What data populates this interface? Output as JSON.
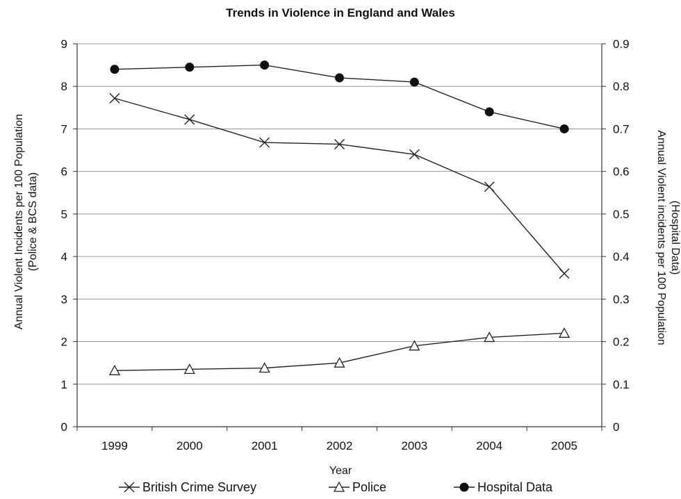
{
  "chart_data": {
    "type": "line",
    "title": "Trends in Violence in England and Wales",
    "xlabel": "Year",
    "ylabel_left_line1": "Annual Violent Incidents per 100 Population",
    "ylabel_left_line2": "(Police & BCS data)",
    "ylabel_right_line1": "Annual Violent incidents per 100 Population",
    "ylabel_right_line2": "(Hospital Data)",
    "categories": [
      "1999",
      "2000",
      "2001",
      "2002",
      "2003",
      "2004",
      "2005"
    ],
    "ylim_left": [
      0,
      9
    ],
    "ylim_right": [
      0,
      0.9
    ],
    "yticks_left": [
      "0",
      "1",
      "2",
      "3",
      "4",
      "5",
      "6",
      "7",
      "8",
      "9"
    ],
    "yticks_right": [
      "0",
      "0.1",
      "0.2",
      "0.3",
      "0.4",
      "0.5",
      "0.6",
      "0.7",
      "0.8",
      "0.9"
    ],
    "grid": true,
    "legend_position": "bottom",
    "series": [
      {
        "name": "British Crime Survey",
        "axis": "left",
        "marker": "x",
        "values": [
          7.72,
          7.22,
          6.68,
          6.64,
          6.4,
          5.64,
          3.6
        ]
      },
      {
        "name": "Police",
        "axis": "left",
        "marker": "triangle",
        "values": [
          1.32,
          1.35,
          1.38,
          1.5,
          1.9,
          2.1,
          2.2
        ]
      },
      {
        "name": "Hospital Data",
        "axis": "right",
        "marker": "circle",
        "values": [
          0.84,
          0.845,
          0.85,
          0.82,
          0.81,
          0.74,
          0.7
        ]
      }
    ]
  }
}
